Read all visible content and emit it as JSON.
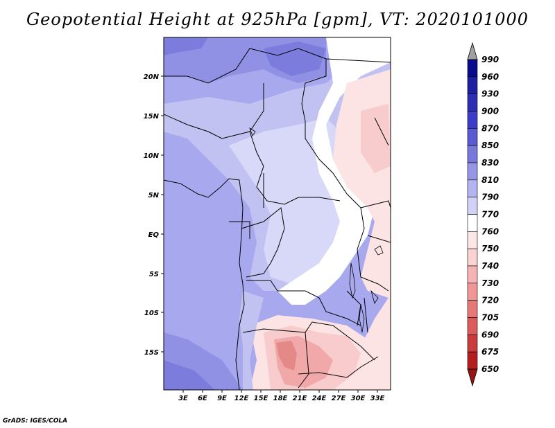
{
  "title": "Geopotential Height at 925hPa [gpm], VT: 2020101000",
  "credit": "GrADS: IGES/COLA",
  "axes": {
    "lat_ticks": [
      "20N",
      "15N",
      "10N",
      "5N",
      "EQ",
      "5S",
      "10S",
      "15S"
    ],
    "lon_ticks": [
      "3E",
      "6E",
      "9E",
      "12E",
      "15E",
      "18E",
      "21E",
      "24E",
      "27E",
      "30E",
      "33E"
    ]
  },
  "colorbar": {
    "levels": [
      "990",
      "960",
      "930",
      "900",
      "870",
      "850",
      "830",
      "810",
      "790",
      "770",
      "760",
      "750",
      "740",
      "730",
      "720",
      "705",
      "690",
      "675",
      "650"
    ],
    "colors": [
      "#a0a0a0",
      "#0a0a8c",
      "#1e1ea0",
      "#2d2db4",
      "#3c3cc8",
      "#5a5ad2",
      "#7878dc",
      "#9696e6",
      "#b4b4f0",
      "#d2d2f8",
      "#ffffff",
      "#fde6e6",
      "#fad2d2",
      "#f5b4b4",
      "#f09696",
      "#e67878",
      "#dc5a5a",
      "#c83c3c",
      "#b41e1e",
      "#961414"
    ]
  },
  "map_colors": {
    "c790": "#a8a8ee",
    "c800": "#c2c2f2",
    "c810": "#d8d8f8",
    "c830": "#9090e4",
    "c850": "#7c7cdc",
    "c760": "#ffffff",
    "c750": "#fce4e4",
    "c740": "#f8cccc",
    "c730": "#f0a8a8",
    "c720": "#e48888"
  }
}
